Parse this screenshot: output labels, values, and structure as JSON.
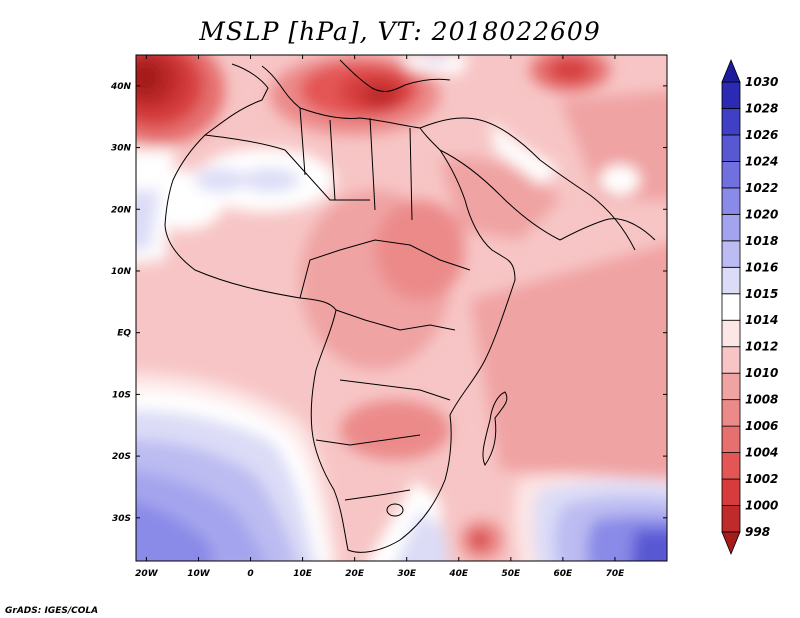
{
  "title": "MSLP [hPa], VT: 2018022609",
  "footer": "GrADS: IGES/COLA",
  "map": {
    "lon_range": [
      -22,
      80
    ],
    "lat_range": [
      -37,
      45
    ],
    "lon_ticks": [
      {
        "value": -20,
        "label": "20W"
      },
      {
        "value": -10,
        "label": "10W"
      },
      {
        "value": 0,
        "label": "0"
      },
      {
        "value": 10,
        "label": "10E"
      },
      {
        "value": 20,
        "label": "20E"
      },
      {
        "value": 30,
        "label": "30E"
      },
      {
        "value": 40,
        "label": "40E"
      },
      {
        "value": 50,
        "label": "50E"
      },
      {
        "value": 60,
        "label": "60E"
      },
      {
        "value": 70,
        "label": "70E"
      }
    ],
    "lat_ticks": [
      {
        "value": 40,
        "label": "40N"
      },
      {
        "value": 30,
        "label": "30N"
      },
      {
        "value": 20,
        "label": "20N"
      },
      {
        "value": 10,
        "label": "10N"
      },
      {
        "value": 0,
        "label": "EQ"
      },
      {
        "value": -10,
        "label": "10S"
      },
      {
        "value": -20,
        "label": "20S"
      },
      {
        "value": -30,
        "label": "30S"
      }
    ]
  },
  "colorbar": {
    "labels": [
      "998",
      "1000",
      "1002",
      "1004",
      "1006",
      "1008",
      "1010",
      "1012",
      "1014",
      "1015",
      "1016",
      "1018",
      "1020",
      "1022",
      "1024",
      "1026",
      "1028",
      "1030"
    ],
    "colors": [
      "#a51c1c",
      "#bf2b2b",
      "#d63c3c",
      "#e45555",
      "#e67070",
      "#ec8a8a",
      "#f0a3a3",
      "#f7c5c5",
      "#fde6e6",
      "#ffffff",
      "#dcdcf7",
      "#bcbcf2",
      "#a4a4ee",
      "#8a8ae8",
      "#7070de",
      "#5858d3",
      "#4040c6",
      "#2a2ab5",
      "#1c1c9c"
    ]
  }
}
